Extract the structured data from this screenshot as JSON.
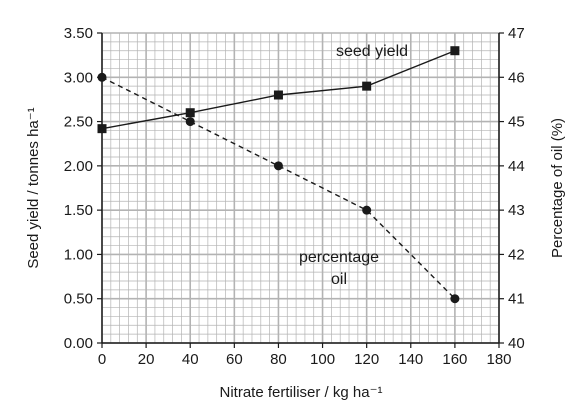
{
  "chart_data": {
    "type": "line",
    "xlabel": "Nitrate fertiliser / kg ha⁻¹",
    "ylabel_left": "Seed yield / tonnes ha⁻¹",
    "ylabel_right": "Percentage of oil (%)",
    "xlim": [
      0,
      180
    ],
    "ylim_left": [
      0,
      3.5
    ],
    "ylim_right": [
      40,
      47
    ],
    "x_ticks": [
      "0",
      "20",
      "40",
      "60",
      "80",
      "100",
      "120",
      "140",
      "160",
      "180"
    ],
    "y_left_ticks": [
      "0.00",
      "0.50",
      "1.00",
      "1.50",
      "2.00",
      "2.50",
      "3.00",
      "3.50"
    ],
    "y_right_ticks": [
      "40",
      "41",
      "42",
      "43",
      "44",
      "45",
      "46",
      "47"
    ],
    "grid": true,
    "series": [
      {
        "name": "seed yield",
        "axis": "left",
        "marker": "square",
        "line_style": "solid",
        "x": [
          0,
          40,
          80,
          120,
          160
        ],
        "values": [
          2.42,
          2.6,
          2.8,
          2.9,
          3.3
        ]
      },
      {
        "name": "percentage oil",
        "axis": "right",
        "marker": "circle",
        "line_style": "dashed",
        "x": [
          0,
          40,
          80,
          120,
          160
        ],
        "values": [
          46,
          45,
          44,
          43,
          41
        ]
      }
    ],
    "annotations": {
      "seed_yield_label": "seed yield",
      "oil_label_line1": "percentage",
      "oil_label_line2": "oil"
    },
    "colors": {
      "line": "#1a1a1a",
      "grid": "#b3b3b3",
      "marker": "#1a1a1a"
    }
  }
}
